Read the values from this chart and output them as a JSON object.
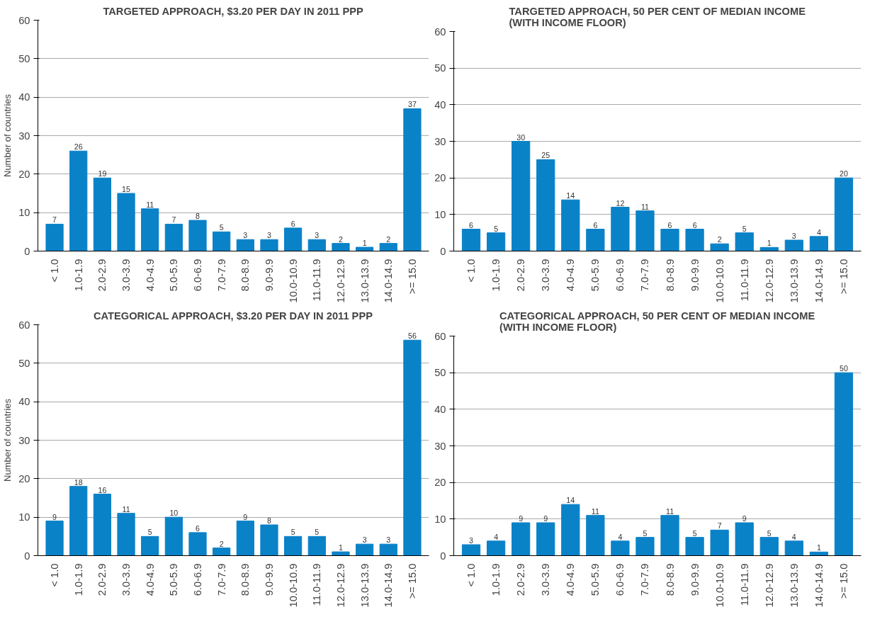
{
  "chart_data": [
    {
      "type": "bar",
      "title": "TARGETED APPROACH, $3.20 PER DAY IN 2011 PPP",
      "ylabel": "Number of countries",
      "categories": [
        "< 1.0",
        "1.0-1.9",
        "2.0-2.9",
        "3.0-3.9",
        "4.0-4.9",
        "5.0-5.9",
        "6.0-6.9",
        "7.0-7.9",
        "8.0-8.9",
        "9.0-9.9",
        "10.0-10.9",
        "11.0-11.9",
        "12.0-12.9",
        "13.0-13.9",
        "14.0-14.9",
        ">= 15.0"
      ],
      "values": [
        7,
        26,
        19,
        15,
        11,
        7,
        8,
        5,
        3,
        3,
        6,
        3,
        2,
        1,
        2,
        37
      ],
      "color": "#0a82c8",
      "ylim": [
        0,
        60
      ],
      "yticks": [
        0,
        10,
        20,
        30,
        40,
        50,
        60
      ],
      "grid": "y",
      "data_labels": true
    },
    {
      "type": "bar",
      "title": "TARGETED APPROACH, 50 PER CENT OF MEDIAN INCOME\n(WITH INCOME FLOOR)",
      "categories": [
        "< 1.0",
        "1.0-1.9",
        "2.0-2.9",
        "3.0-3.9",
        "4.0-4.9",
        "5.0-5.9",
        "6.0-6.9",
        "7.0-7.9",
        "8.0-8.9",
        "9.0-9.9",
        "10.0-10.9",
        "11.0-11.9",
        "12.0-12.9",
        "13.0-13.9",
        "14.0-14.9",
        ">= 15.0"
      ],
      "values": [
        6,
        5,
        30,
        25,
        14,
        6,
        12,
        11,
        6,
        6,
        2,
        5,
        1,
        3,
        4,
        20
      ],
      "color": "#0a82c8",
      "ylim": [
        0,
        60
      ],
      "yticks": [
        0,
        10,
        20,
        30,
        40,
        50,
        60
      ],
      "grid": "y",
      "data_labels": true
    },
    {
      "type": "bar",
      "title": "CATEGORICAL APPROACH, $3.20 PER DAY IN 2011 PPP",
      "ylabel": "Number of countries",
      "categories": [
        "< 1.0",
        "1.0-1.9",
        "2.0-2.9",
        "3.0-3.9",
        "4.0-4.9",
        "5.0-5.9",
        "6.0-6.9",
        "7.0-7.9",
        "8.0-8.9",
        "9.0-9.9",
        "10.0-10.9",
        "11.0-11.9",
        "12.0-12.9",
        "13.0-13.9",
        "14.0-14.9",
        ">= 15.0"
      ],
      "values": [
        9,
        18,
        16,
        11,
        5,
        10,
        6,
        2,
        9,
        8,
        5,
        5,
        1,
        3,
        3,
        56
      ],
      "color": "#0a82c8",
      "ylim": [
        0,
        60
      ],
      "yticks": [
        0,
        10,
        20,
        30,
        40,
        50,
        60
      ],
      "grid": "y",
      "data_labels": true
    },
    {
      "type": "bar",
      "title": "CATEGORICAL APPROACH, 50 PER CENT OF MEDIAN INCOME\n(WITH INCOME FLOOR)",
      "categories": [
        "< 1.0",
        "1.0-1.9",
        "2.0-2.9",
        "3.0-3.9",
        "4.0-4.9",
        "5.0-5.9",
        "6.0-6.9",
        "7.0-7.9",
        "8.0-8.9",
        "9.0-9.9",
        "10.0-10.9",
        "11.0-11.9",
        "12.0-12.9",
        "13.0-13.9",
        "14.0-14.9",
        ">= 15.0"
      ],
      "values": [
        3,
        4,
        9,
        9,
        14,
        11,
        4,
        5,
        11,
        5,
        7,
        9,
        5,
        4,
        1,
        50
      ],
      "color": "#0a82c8",
      "ylim": [
        0,
        60
      ],
      "yticks": [
        0,
        10,
        20,
        30,
        40,
        50,
        60
      ],
      "grid": "y",
      "data_labels": true
    }
  ]
}
